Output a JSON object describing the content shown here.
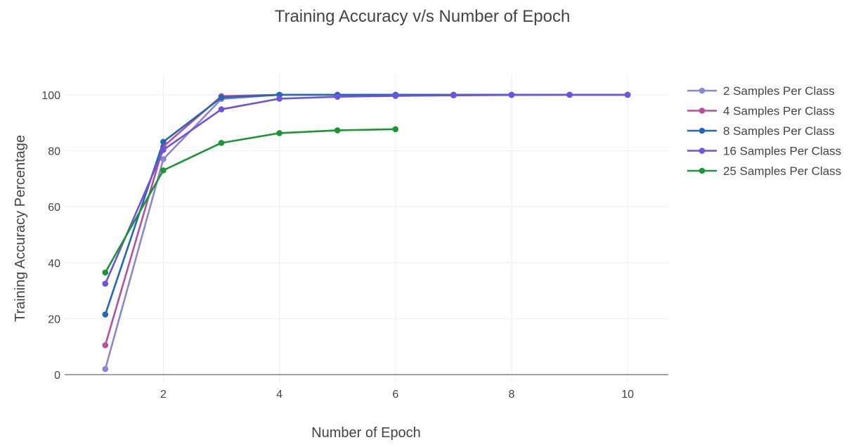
{
  "chart_data": {
    "type": "line",
    "title": "Training Accuracy v/s Number of Epoch",
    "xlabel": "Number of Epoch",
    "ylabel": "Training Accuracy Percentage",
    "xlim": [
      0.3,
      10.7
    ],
    "ylim": [
      -2.5,
      107.5
    ],
    "xticks": [
      2,
      4,
      6,
      8,
      10
    ],
    "yticks": [
      0,
      20,
      40,
      60,
      80,
      100
    ],
    "grid": true,
    "legend": "right",
    "series": [
      {
        "name": "2 Samples Per Class",
        "color": "#8a86d1",
        "x": [
          1,
          2,
          3,
          4,
          5,
          6,
          7,
          8,
          9,
          10
        ],
        "y": [
          2,
          77,
          98.5,
          100,
          100,
          100,
          100,
          100,
          100,
          100
        ]
      },
      {
        "name": "4 Samples Per Class",
        "color": "#b84f98",
        "x": [
          1,
          2,
          3,
          4,
          5,
          6,
          7,
          8,
          9,
          10
        ],
        "y": [
          10.5,
          81.5,
          99.5,
          100,
          100,
          100,
          100,
          100,
          100,
          100
        ]
      },
      {
        "name": "8 Samples Per Class",
        "color": "#2467b5",
        "x": [
          1,
          2,
          3,
          4,
          5,
          6,
          7,
          8,
          9,
          10
        ],
        "y": [
          21.5,
          83.2,
          99,
          100,
          100,
          100,
          100,
          100,
          100,
          100
        ]
      },
      {
        "name": "16 Samples Per Class",
        "color": "#7052e0",
        "x": [
          1,
          2,
          3,
          4,
          5,
          6,
          7,
          8,
          9,
          10
        ],
        "y": [
          32.5,
          80.3,
          94.8,
          98.6,
          99.3,
          99.6,
          99.8,
          99.9,
          100,
          100
        ]
      },
      {
        "name": "25 Samples Per Class",
        "color": "#1a9632",
        "x": [
          1,
          2,
          3,
          4,
          5,
          6
        ],
        "y": [
          36.5,
          73,
          82.8,
          86.3,
          87.3,
          87.7
        ]
      }
    ]
  }
}
